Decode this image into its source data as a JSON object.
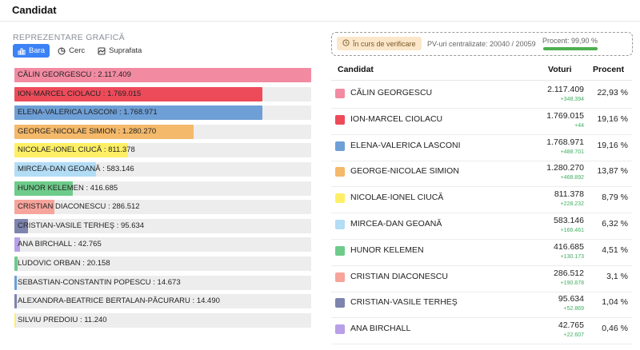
{
  "header": {
    "title": "Candidat"
  },
  "chart": {
    "section_label": "REPREZENTARE GRAFICĂ",
    "tabs": [
      {
        "label": "Bara",
        "icon": "bar-chart-icon",
        "active": true
      },
      {
        "label": "Cerc",
        "icon": "pie-chart-icon",
        "active": false
      },
      {
        "label": "Suprafata",
        "icon": "area-chart-icon",
        "active": false
      }
    ]
  },
  "status": {
    "badge": "În curs de verificare",
    "pv_text": "PV-uri centralizate: 20040 / 20059",
    "percent_text": "Procent: 99,90 %",
    "percent_value": 99.9
  },
  "table": {
    "headers": {
      "candidate": "Candidat",
      "votes": "Voturi",
      "percent": "Procent"
    },
    "rows": [
      {
        "name": "CĂLIN GEORGESCU",
        "votes": "2.117.409",
        "delta": "+348.394",
        "percent": "22,93 %",
        "color": "#F28BA2"
      },
      {
        "name": "ION-MARCEL CIOLACU",
        "votes": "1.769.015",
        "delta": "+44",
        "percent": "19,16 %",
        "color": "#EE4B5A"
      },
      {
        "name": "ELENA-VALERICA LASCONI",
        "votes": "1.768.971",
        "delta": "+488.701",
        "percent": "19,16 %",
        "color": "#6E9FD6"
      },
      {
        "name": "GEORGE-NICOLAE SIMION",
        "votes": "1.280.270",
        "delta": "+468.892",
        "percent": "13,87 %",
        "color": "#F4B96A"
      },
      {
        "name": "NICOLAE-IONEL CIUCĂ",
        "votes": "811.378",
        "delta": "+228.232",
        "percent": "8,79 %",
        "color": "#FFEF66"
      },
      {
        "name": "MIRCEA-DAN GEOANĂ",
        "votes": "583.146",
        "delta": "+166.461",
        "percent": "6,32 %",
        "color": "#B3DCF5"
      },
      {
        "name": "HUNOR KELEMEN",
        "votes": "416.685",
        "delta": "+130.173",
        "percent": "4,51 %",
        "color": "#6ECB8A"
      },
      {
        "name": "CRISTIAN DIACONESCU",
        "votes": "286.512",
        "delta": "+190.878",
        "percent": "3,1 %",
        "color": "#F7A49C"
      },
      {
        "name": "CRISTIAN-VASILE TERHEŞ",
        "votes": "95.634",
        "delta": "+52.869",
        "percent": "1,04 %",
        "color": "#7D84AE"
      },
      {
        "name": "ANA BIRCHALL",
        "votes": "42.765",
        "delta": "+22.607",
        "percent": "0,46 %",
        "color": "#B8A0E8"
      }
    ]
  },
  "chart_data": {
    "type": "bar",
    "orientation": "horizontal",
    "categories": [
      "CĂLIN GEORGESCU",
      "ION-MARCEL CIOLACU",
      "ELENA-VALERICA LASCONI",
      "GEORGE-NICOLAE SIMION",
      "NICOLAE-IONEL CIUCĂ",
      "MIRCEA-DAN GEOANĂ",
      "HUNOR KELEMEN",
      "CRISTIAN DIACONESCU",
      "CRISTIAN-VASILE TERHEŞ",
      "ANA BIRCHALL",
      "LUDOVIC ORBAN",
      "SEBASTIAN-CONSTANTIN POPESCU",
      "ALEXANDRA-BEATRICE BERTALAN-PĂCURARU",
      "SILVIU PREDOIU"
    ],
    "labels": [
      "CĂLIN GEORGESCU : 2.117.409",
      "ION-MARCEL CIOLACU : 1.769.015",
      "ELENA-VALERICA LASCONI : 1.768.971",
      "GEORGE-NICOLAE SIMION : 1.280.270",
      "NICOLAE-IONEL CIUCĂ : 811.378",
      "MIRCEA-DAN GEOANĂ : 583.146",
      "HUNOR KELEMEN : 416.685",
      "CRISTIAN DIACONESCU : 286.512",
      "CRISTIAN-VASILE TERHEŞ : 95.634",
      "ANA BIRCHALL : 42.765",
      "LUDOVIC ORBAN : 20.158",
      "SEBASTIAN-CONSTANTIN POPESCU : 14.673",
      "ALEXANDRA-BEATRICE BERTALAN-PĂCURARU : 14.490",
      "SILVIU PREDOIU : 11.240"
    ],
    "values": [
      2117409,
      1769015,
      1768971,
      1280270,
      811378,
      583146,
      416685,
      286512,
      95634,
      42765,
      20158,
      14673,
      14490,
      11240
    ],
    "colors": [
      "#F28BA2",
      "#EE4B5A",
      "#6E9FD6",
      "#F4B96A",
      "#FFEF66",
      "#B3DCF5",
      "#6ECB8A",
      "#F7A49C",
      "#7D84AE",
      "#B8A0E8",
      "#6ECB8A",
      "#6E9FD6",
      "#7D84AE",
      "#FFEF66"
    ]
  }
}
